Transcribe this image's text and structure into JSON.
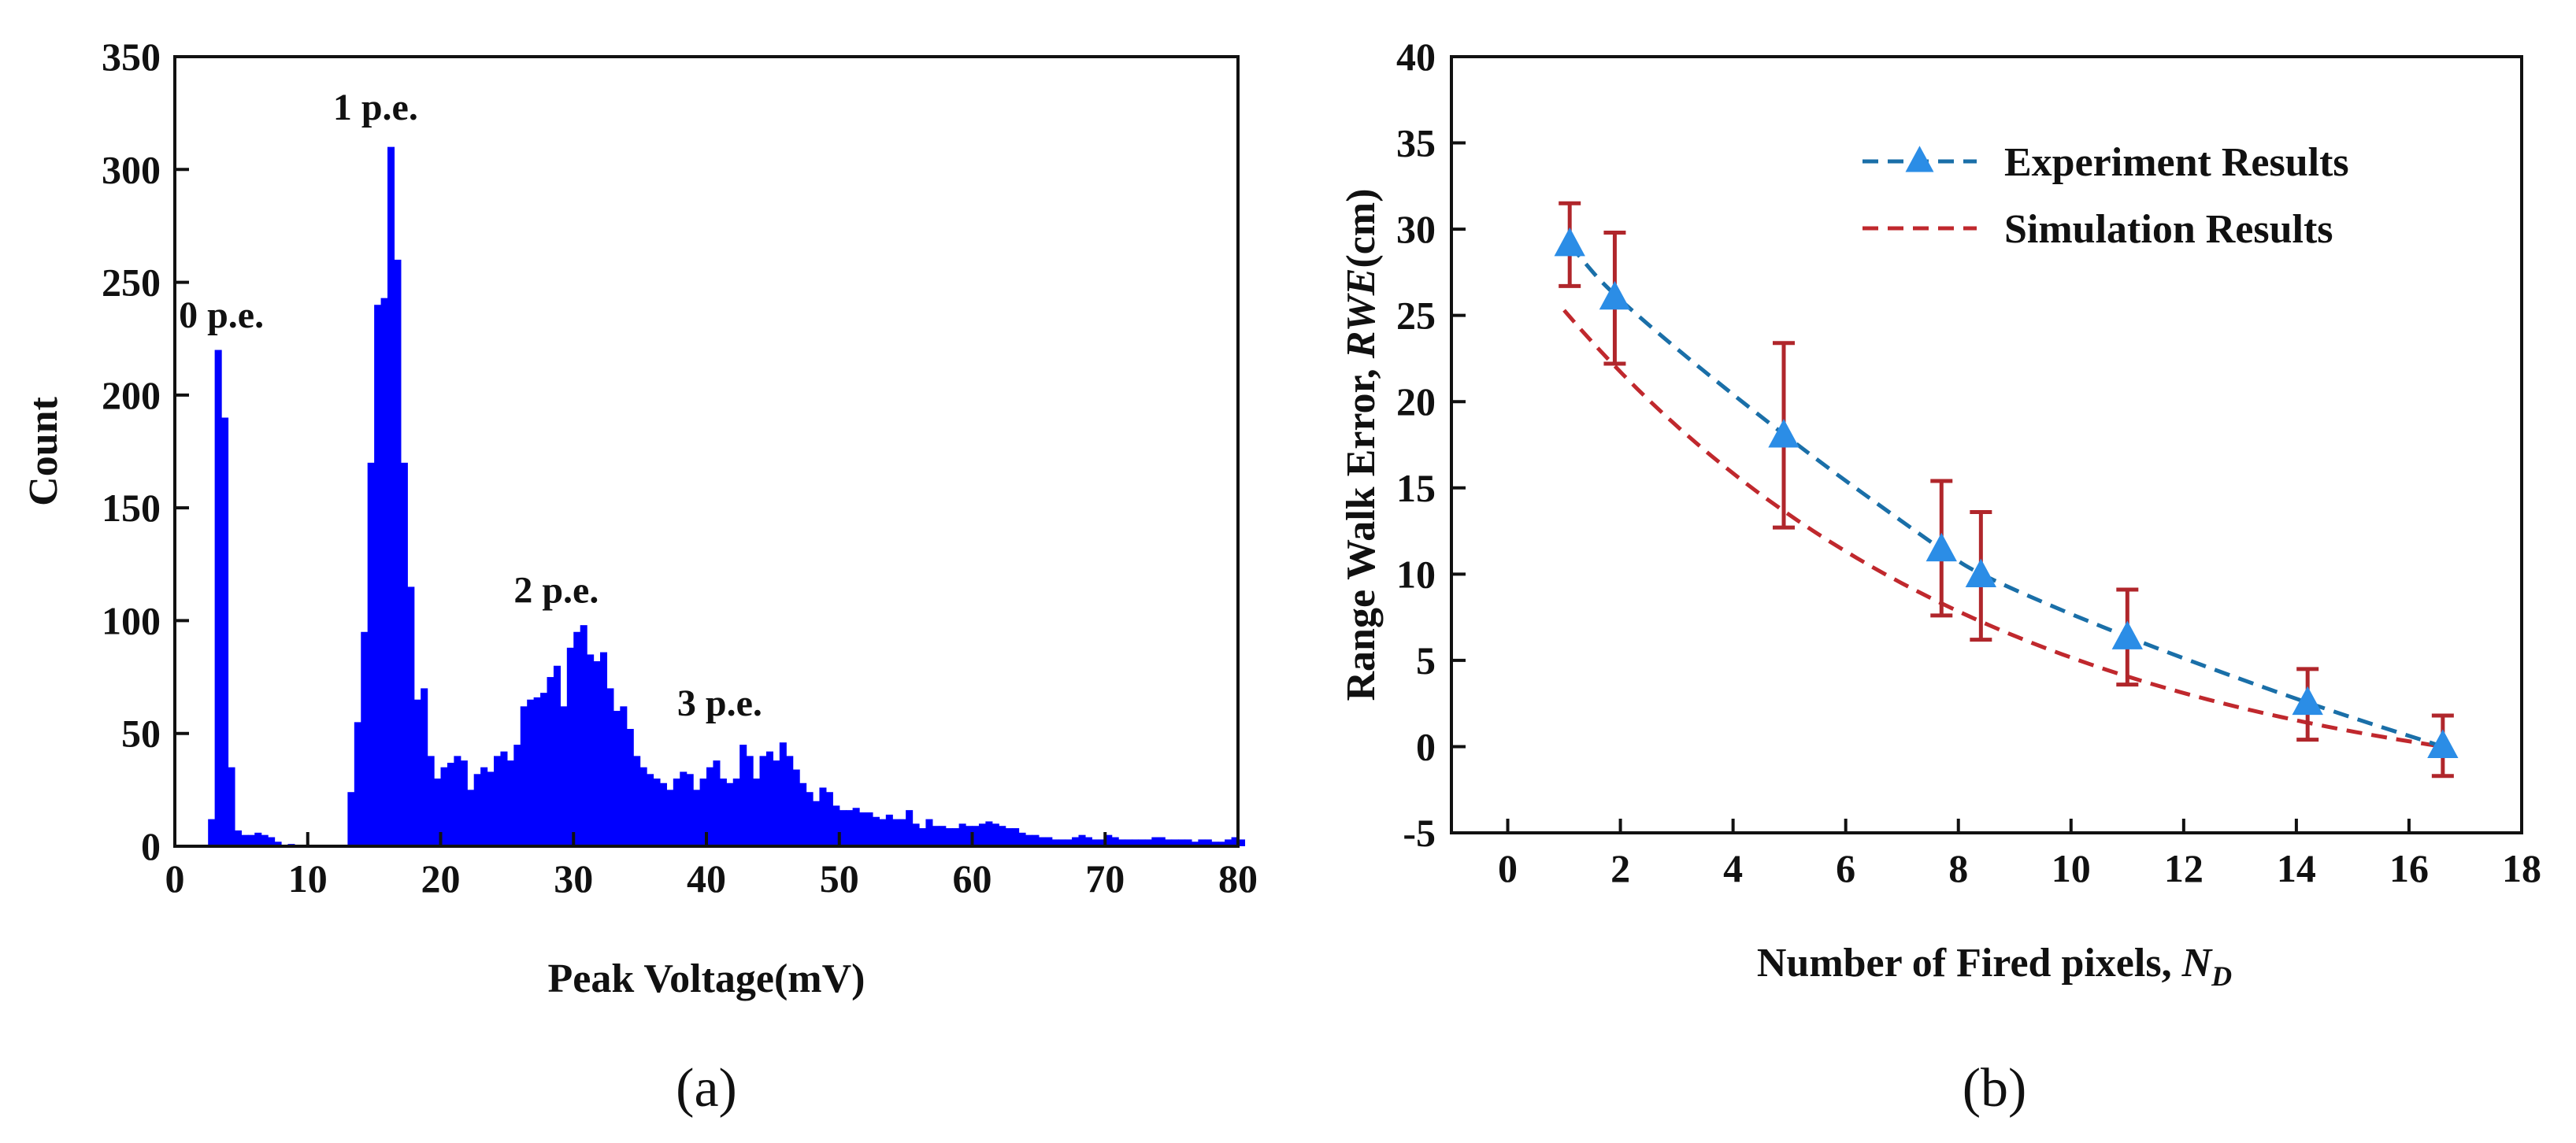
{
  "chart_data": [
    {
      "id": "a",
      "type": "bar",
      "caption": "(a)",
      "xlabel": "Peak Voltage(mV)",
      "ylabel": "Count",
      "xlim": [
        0,
        80
      ],
      "ylim": [
        0,
        350
      ],
      "xticks": [
        0,
        10,
        20,
        30,
        40,
        50,
        60,
        70,
        80
      ],
      "yticks": [
        0,
        50,
        100,
        150,
        200,
        250,
        300,
        350
      ],
      "bar_color": "#0000ff",
      "bin_width": 0.5,
      "bin_start": 2.5,
      "values": [
        12,
        220,
        190,
        35,
        7,
        5,
        5,
        6,
        5,
        4,
        2,
        0,
        1,
        0,
        0,
        0,
        0,
        0,
        0,
        0,
        0,
        24,
        55,
        95,
        170,
        240,
        243,
        310,
        260,
        170,
        115,
        65,
        70,
        40,
        30,
        35,
        37,
        40,
        38,
        25,
        32,
        35,
        33,
        40,
        42,
        38,
        45,
        62,
        65,
        66,
        68,
        75,
        80,
        62,
        88,
        95,
        98,
        85,
        82,
        86,
        70,
        60,
        62,
        52,
        40,
        35,
        32,
        30,
        28,
        25,
        30,
        33,
        32,
        25,
        30,
        35,
        38,
        30,
        28,
        30,
        45,
        40,
        30,
        40,
        42,
        38,
        46,
        40,
        34,
        28,
        24,
        20,
        26,
        24,
        18,
        16,
        16,
        17,
        15,
        15,
        13,
        12,
        14,
        12,
        12,
        16,
        10,
        8,
        12,
        9,
        9,
        8,
        8,
        10,
        9,
        9,
        10,
        11,
        10,
        9,
        8,
        8,
        6,
        5,
        5,
        4,
        4,
        3,
        3,
        3,
        4,
        5,
        4,
        3,
        3,
        5,
        4,
        3,
        3,
        3,
        3,
        3,
        4,
        4,
        3,
        3,
        3,
        3,
        2,
        3,
        3,
        2,
        2,
        3,
        4,
        3
      ],
      "annotations": [
        {
          "text": "0 p.e.",
          "x": 3.2,
          "y": 230
        },
        {
          "text": "1 p.e.",
          "x": 16,
          "y": 322
        },
        {
          "text": "2 p.e.",
          "x": 29.5,
          "y": 108
        },
        {
          "text": "3 p.e.",
          "x": 41,
          "y": 58
        }
      ]
    },
    {
      "id": "b",
      "type": "line",
      "caption": "(b)",
      "xlabel": "Number of Fired pixels, ",
      "xlabel_italic": "N",
      "xlabel_sub": "D",
      "ylabel": "Range Walk Error, ",
      "ylabel_italic": "RWE",
      "ylabel_suffix": "(cm)",
      "xlim": [
        -1,
        18
      ],
      "ylim": [
        -5,
        40
      ],
      "xticks": [
        0,
        2,
        4,
        6,
        8,
        10,
        12,
        14,
        16,
        18
      ],
      "yticks": [
        -5,
        0,
        5,
        10,
        15,
        20,
        25,
        30,
        35,
        40
      ],
      "legend_position": "top-right",
      "series": [
        {
          "name": "Experiment Results",
          "color": "#1a6fa8",
          "marker_color": "#2b8de6",
          "style": "dashed-triangles",
          "points": [
            {
              "x": 1.1,
              "y": 29.1,
              "err_low": 26.7,
              "err_high": 31.5
            },
            {
              "x": 1.9,
              "y": 26.0,
              "err_low": 22.2,
              "err_high": 29.8
            },
            {
              "x": 4.9,
              "y": 18.0,
              "err_low": 12.7,
              "err_high": 23.4
            },
            {
              "x": 7.7,
              "y": 11.4,
              "err_low": 7.6,
              "err_high": 15.4
            },
            {
              "x": 8.4,
              "y": 9.9,
              "err_low": 6.2,
              "err_high": 13.6
            },
            {
              "x": 11.0,
              "y": 6.3,
              "err_low": 3.6,
              "err_high": 9.1
            },
            {
              "x": 14.2,
              "y": 2.5,
              "err_low": 0.4,
              "err_high": 4.5
            },
            {
              "x": 16.6,
              "y": 0.0,
              "err_low": -1.7,
              "err_high": 1.8
            }
          ]
        },
        {
          "name": "Simulation Results",
          "color": "#c0282d",
          "style": "dashed",
          "curve": {
            "a": 29.05,
            "k": 0.1313,
            "x0": 1.0,
            "x1": 16.6
          }
        }
      ],
      "errorbar_color": "#b0262b"
    }
  ]
}
